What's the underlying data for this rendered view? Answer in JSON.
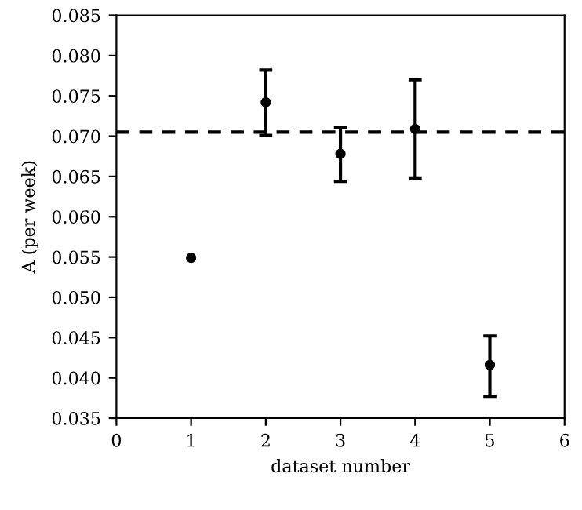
{
  "chart_data": {
    "type": "scatter",
    "xlabel": "dataset number",
    "ylabel": "A (per week)",
    "x": [
      1,
      2,
      3,
      4,
      5
    ],
    "series": [
      {
        "color": "#000000",
        "values": [
          0.0549,
          0.0742,
          0.0678,
          0.0709,
          0.0416
        ],
        "errors": [
          null,
          [
            0.0701,
            0.0782
          ],
          [
            0.0644,
            0.0711
          ],
          [
            0.0648,
            0.077
          ],
          [
            0.0377,
            0.0452
          ]
        ]
      }
    ],
    "marker": "circle",
    "ref_lines": [
      {
        "axis": "y",
        "value": 0.0705,
        "color": "#000000",
        "line_style": "dashed"
      }
    ],
    "xlim": [
      0,
      6
    ],
    "xticks": [
      0,
      1,
      2,
      3,
      4,
      5,
      6
    ],
    "ylim": [
      0.035,
      0.085
    ],
    "yticks": [
      {
        "value": 0.035,
        "label": "0.035"
      },
      {
        "value": 0.04,
        "label": "0.040"
      },
      {
        "value": 0.045,
        "label": "0.045"
      },
      {
        "value": 0.05,
        "label": "0.050"
      },
      {
        "value": 0.055,
        "label": "0.055"
      },
      {
        "value": 0.06,
        "label": "0.060"
      },
      {
        "value": 0.065,
        "label": "0.065"
      },
      {
        "value": 0.07,
        "label": "0.070"
      },
      {
        "value": 0.075,
        "label": "0.075"
      },
      {
        "value": 0.08,
        "label": "0.080"
      },
      {
        "value": 0.085,
        "label": "0.085"
      }
    ],
    "grid": false,
    "legend": false
  }
}
